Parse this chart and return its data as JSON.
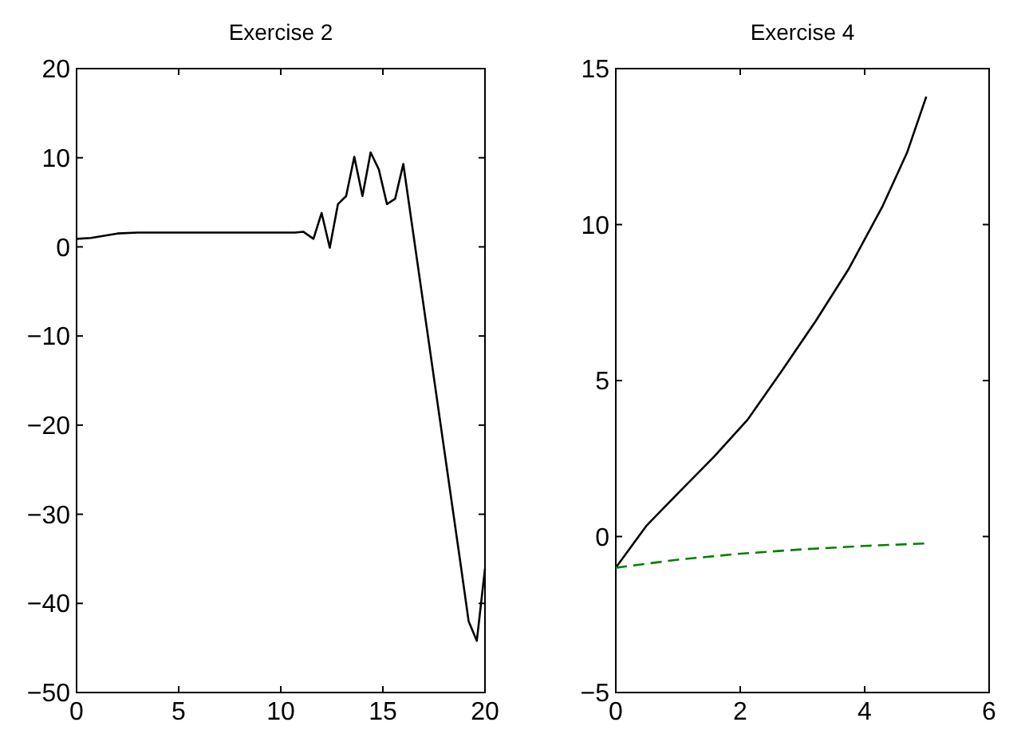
{
  "chart_data": [
    {
      "type": "line",
      "title": "Exercise 2",
      "xlim": [
        0,
        20
      ],
      "xticks": [
        0,
        5,
        10,
        15,
        20
      ],
      "ylim": [
        -50,
        20
      ],
      "yticks": [
        -50,
        -40,
        -30,
        -20,
        -10,
        0,
        10,
        20
      ],
      "series": [
        {
          "color": "#000000",
          "line_style": "solid",
          "x": [
            0,
            0.7,
            2,
            3,
            10.7,
            11.1,
            11.6,
            12.0,
            12.4,
            12.8,
            13.2,
            13.6,
            14.0,
            14.4,
            14.8,
            15.2,
            15.6,
            16.0,
            17.1,
            18.8,
            19.2,
            19.6,
            20
          ],
          "values": [
            0.9,
            1.0,
            1.5,
            1.6,
            1.6,
            1.7,
            0.9,
            3.8,
            -0.1,
            4.8,
            5.7,
            10.1,
            5.7,
            10.6,
            8.7,
            4.8,
            5.4,
            9.3,
            -8.3,
            -35.5,
            -42,
            -44.2,
            -36.1
          ]
        }
      ]
    },
    {
      "type": "line",
      "title": "Exercise 4",
      "xlim": [
        0,
        6
      ],
      "xticks": [
        0,
        2,
        4,
        6
      ],
      "ylim": [
        -5,
        15
      ],
      "yticks": [
        -5,
        0,
        5,
        10,
        15
      ],
      "series": [
        {
          "color": "#000000",
          "line_style": "solid",
          "x": [
            0,
            0.49,
            1.03,
            1.58,
            2.12,
            2.66,
            3.21,
            3.75,
            4.29,
            4.68,
            4.99
          ],
          "values": [
            -1,
            0.34,
            1.45,
            2.56,
            3.75,
            5.29,
            6.9,
            8.6,
            10.6,
            12.3,
            14.1
          ]
        },
        {
          "color": "#008000",
          "line_style": "dashed",
          "x": [
            0,
            1,
            2,
            3,
            4,
            5
          ],
          "values": [
            -1,
            -0.74,
            -0.55,
            -0.41,
            -0.3,
            -0.22
          ]
        }
      ]
    }
  ]
}
